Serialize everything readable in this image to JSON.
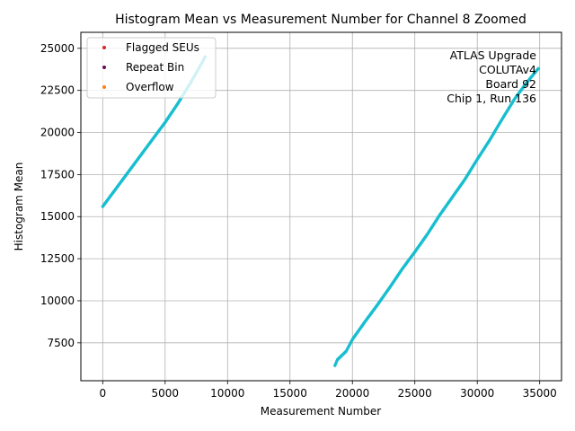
{
  "chart_data": {
    "type": "scatter",
    "title": "Histogram Mean vs Measurement Number for Channel 8 Zoomed",
    "xlabel": "Measurement Number",
    "ylabel": "Histogram Mean",
    "xlim": [
      -1750,
      36750
    ],
    "ylim": [
      5250,
      25950
    ],
    "xticks": [
      0,
      5000,
      10000,
      15000,
      20000,
      25000,
      30000,
      35000
    ],
    "xtick_labels": [
      "0",
      "5000",
      "10000",
      "15000",
      "20000",
      "25000",
      "30000",
      "35000"
    ],
    "yticks": [
      7500,
      10000,
      12500,
      15000,
      17500,
      20000,
      22500,
      25000
    ],
    "ytick_labels": [
      "7500",
      "10000",
      "12500",
      "15000",
      "17500",
      "20000",
      "22500",
      "25000"
    ],
    "grid": true,
    "legend_placement": "top-left",
    "legend": [
      {
        "label": "Flagged SEUs",
        "color": "#d62728"
      },
      {
        "label": "Repeat Bin",
        "color": "#6a0d5e"
      },
      {
        "label": "Overflow",
        "color": "#ff7f0e"
      }
    ],
    "data_color": "#17becf",
    "series": [
      {
        "points": [
          [
            0,
            15600
          ],
          [
            1000,
            16600
          ],
          [
            2000,
            17600
          ],
          [
            3000,
            18600
          ],
          [
            4000,
            19600
          ],
          [
            5000,
            20600
          ],
          [
            6000,
            21700
          ],
          [
            7000,
            22900
          ],
          [
            8000,
            24200
          ],
          [
            8200,
            24500
          ]
        ]
      },
      {
        "points": [
          [
            18600,
            6150
          ],
          [
            18800,
            6500
          ],
          [
            19500,
            7000
          ],
          [
            20000,
            7700
          ],
          [
            21000,
            8750
          ],
          [
            22000,
            9750
          ],
          [
            23000,
            10800
          ],
          [
            24000,
            11900
          ],
          [
            25000,
            12900
          ],
          [
            26000,
            13950
          ],
          [
            27000,
            15100
          ],
          [
            28000,
            16150
          ],
          [
            29000,
            17200
          ],
          [
            30000,
            18400
          ],
          [
            31000,
            19550
          ],
          [
            32000,
            20800
          ],
          [
            33000,
            22000
          ],
          [
            34000,
            23000
          ],
          [
            34900,
            23800
          ]
        ]
      }
    ],
    "annotation_lines": [
      "ATLAS Upgrade",
      "COLUTAv4",
      "Board 92",
      "Chip 1, Run 136"
    ]
  }
}
